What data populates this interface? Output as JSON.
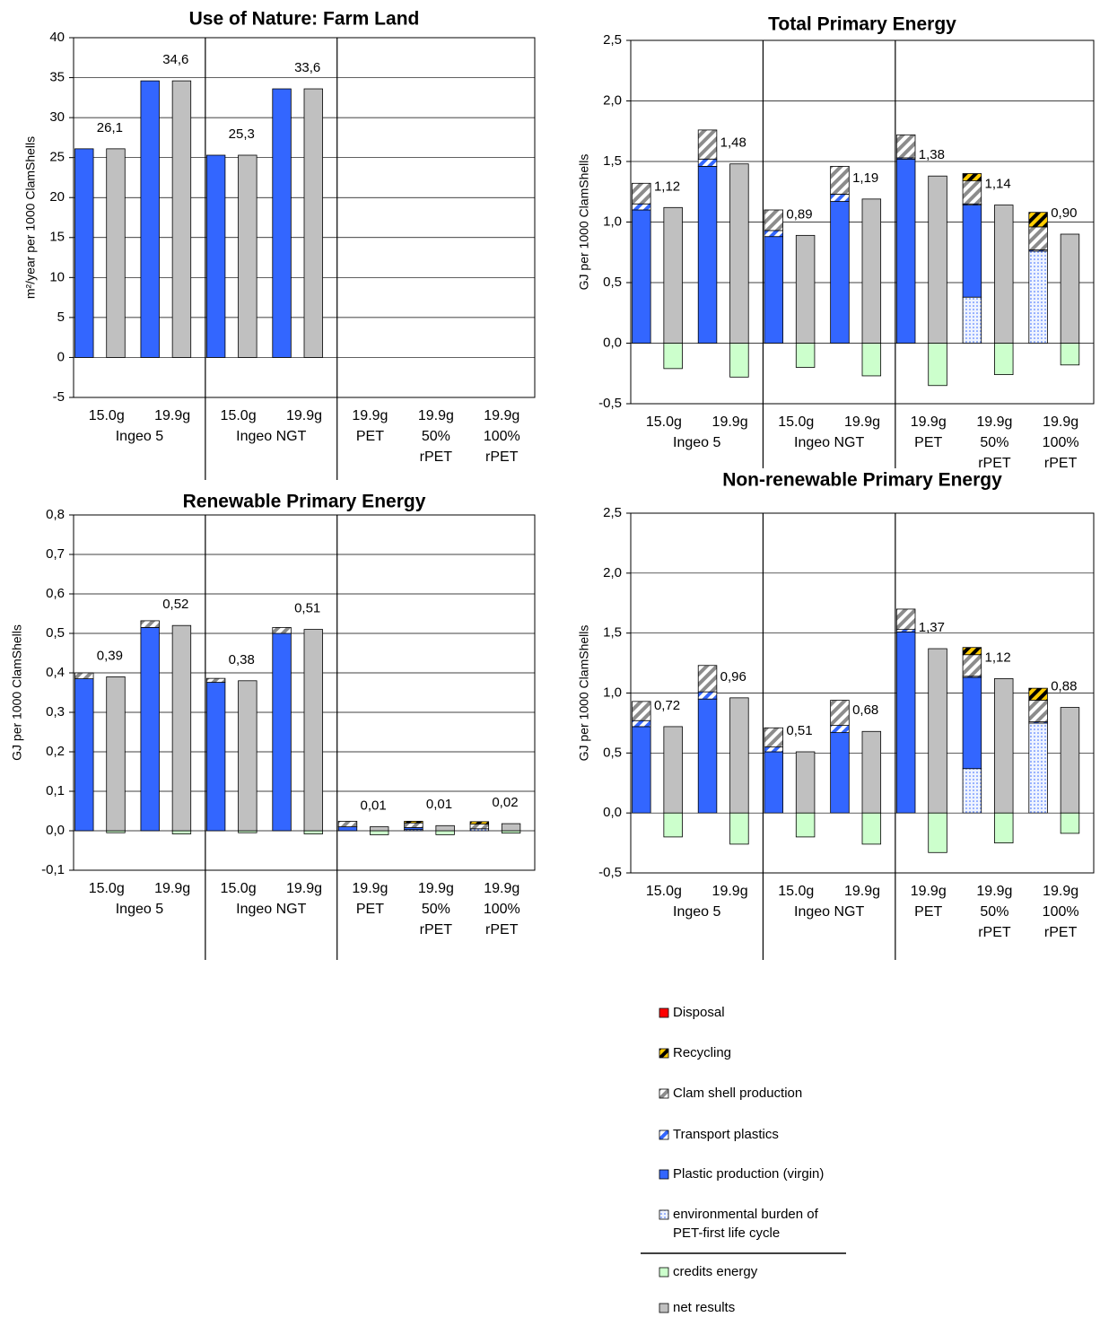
{
  "legend": [
    {
      "name": "Disposal",
      "color": "#ff0000",
      "pattern": "solid"
    },
    {
      "name": "Recycling",
      "color": "#ffcc00",
      "pattern": "stripes-on"
    },
    {
      "name": "Clam shell production",
      "color": "#8c8c8c",
      "pattern": "stripes"
    },
    {
      "name": "Transport plastics",
      "color": "#3366ff",
      "pattern": "stripes"
    },
    {
      "name": "Plastic production (virgin)",
      "color": "#3366ff",
      "pattern": "solid"
    },
    {
      "name": "environmental burden of\nPET-first life cycle",
      "color": "#3366ff",
      "pattern": "dots"
    },
    {
      "name": "credits energy",
      "color": "#ccffcc",
      "pattern": "solid"
    },
    {
      "name": "net results",
      "color": "#c0c0c0",
      "pattern": "solid"
    }
  ],
  "chart_data": [
    {
      "type": "bar",
      "title": "Use of Nature: Farm Land",
      "y_label": "m²/year per 1000 ClamShells",
      "groups": [
        {
          "label": "Ingeo 5",
          "categories": [
            "15.0g",
            "19.9g"
          ]
        },
        {
          "label": "Ingeo NGT",
          "categories": [
            "15.0g",
            "19.9g"
          ]
        },
        {
          "label": null,
          "categories": [
            "19.9g\nPET",
            "19.9g\n50%\nrPET",
            "19.9g\n100%\nrPET"
          ]
        }
      ],
      "ylim": [
        -5,
        40
      ],
      "yticks": [
        -5,
        0,
        5,
        10,
        15,
        20,
        25,
        30,
        35,
        40
      ],
      "grid": true,
      "series": [
        {
          "values": [
            null,
            null,
            null,
            null,
            null,
            null,
            null
          ]
        },
        {
          "values": [
            null,
            null,
            null,
            null,
            null,
            null,
            null
          ]
        },
        {
          "values": [
            null,
            null,
            null,
            null,
            null,
            null,
            null
          ]
        },
        {
          "values": [
            null,
            null,
            null,
            null,
            null,
            null,
            null
          ]
        },
        {
          "values": [
            26.1,
            34.6,
            25.3,
            33.6,
            null,
            null,
            null
          ]
        },
        {
          "values": [
            null,
            null,
            null,
            null,
            null,
            null,
            null
          ]
        },
        {
          "values": [
            null,
            null,
            null,
            null,
            null,
            null,
            null
          ]
        },
        {
          "values": [
            26.1,
            34.6,
            25.3,
            33.6,
            null,
            null,
            null
          ],
          "value_labels": [
            "26,1",
            "34,6",
            "25,3",
            "33,6",
            null,
            null,
            null
          ]
        }
      ]
    },
    {
      "type": "bar",
      "title": "Total Primary Energy",
      "y_label": "GJ per 1000 ClamShells",
      "groups": [
        {
          "label": "Ingeo 5",
          "categories": [
            "15.0g",
            "19.9g"
          ]
        },
        {
          "label": "Ingeo NGT",
          "categories": [
            "15.0g",
            "19.9g"
          ]
        },
        {
          "label": null,
          "categories": [
            "19.9g\nPET",
            "19.9g\n50%\nrPET",
            "19.9g\n100%\nrPET"
          ]
        }
      ],
      "ylim": [
        -0.5,
        2.5
      ],
      "yticks": [
        {
          "value": -0.5,
          "label": "-0,5"
        },
        {
          "value": 0,
          "label": "0,0"
        },
        {
          "value": 0.5,
          "label": "0,5"
        },
        {
          "value": 1,
          "label": "1,0"
        },
        {
          "value": 1.5,
          "label": "1,5"
        },
        {
          "value": 2,
          "label": "2,0"
        },
        {
          "value": 2.5,
          "label": "2,5"
        }
      ],
      "grid": true,
      "series": [
        {
          "values": [
            null,
            null,
            null,
            null,
            null,
            null,
            null
          ]
        },
        {
          "values": [
            null,
            null,
            null,
            null,
            null,
            0.06,
            0.12
          ]
        },
        {
          "values": [
            0.17,
            0.24,
            0.17,
            0.23,
            0.19,
            0.19,
            0.19
          ]
        },
        {
          "values": [
            0.05,
            0.06,
            0.05,
            0.06,
            0.01,
            0.01,
            0.01
          ]
        },
        {
          "values": [
            1.1,
            1.46,
            0.88,
            1.17,
            1.52,
            0.76,
            null
          ]
        },
        {
          "values": [
            null,
            null,
            null,
            null,
            null,
            0.38,
            0.76
          ]
        },
        {
          "values": [
            -0.21,
            -0.28,
            -0.2,
            -0.27,
            -0.35,
            -0.26,
            -0.18
          ]
        },
        {
          "values": [
            1.12,
            1.48,
            0.89,
            1.19,
            1.38,
            1.14,
            0.9
          ],
          "value_labels": [
            "1,12",
            "1,48",
            "0,89",
            "1,19",
            "1,38",
            "1,14",
            "0,90"
          ]
        }
      ]
    },
    {
      "type": "bar",
      "title": "Renewable Primary Energy",
      "y_label": "GJ per 1000 ClamShells",
      "groups": [
        {
          "label": "Ingeo 5",
          "categories": [
            "15.0g",
            "19.9g"
          ]
        },
        {
          "label": "Ingeo NGT",
          "categories": [
            "15.0g",
            "19.9g"
          ]
        },
        {
          "label": null,
          "categories": [
            "19.9g\nPET",
            "19.9g\n50%\nrPET",
            "19.9g\n100%\nrPET"
          ]
        }
      ],
      "ylim": [
        -0.1,
        0.8
      ],
      "yticks": [
        {
          "value": -0.1,
          "label": "-0,1"
        },
        {
          "value": 0,
          "label": "0,0"
        },
        {
          "value": 0.1,
          "label": "0,1"
        },
        {
          "value": 0.2,
          "label": "0,2"
        },
        {
          "value": 0.3,
          "label": "0,3"
        },
        {
          "value": 0.4,
          "label": "0,4"
        },
        {
          "value": 0.5,
          "label": "0,5"
        },
        {
          "value": 0.6,
          "label": "0,6"
        },
        {
          "value": 0.7,
          "label": "0,7"
        },
        {
          "value": 0.8,
          "label": "0,8"
        }
      ],
      "grid": true,
      "series": [
        {
          "values": [
            null,
            null,
            null,
            null,
            null,
            null,
            null
          ]
        },
        {
          "values": [
            null,
            null,
            null,
            null,
            null,
            0.004,
            0.006
          ]
        },
        {
          "values": [
            0.015,
            0.017,
            0.01,
            0.015,
            0.014,
            0.012,
            0.012
          ]
        },
        {
          "values": [
            null,
            null,
            null,
            null,
            null,
            null,
            null
          ]
        },
        {
          "values": [
            0.385,
            0.515,
            0.376,
            0.5,
            0.01,
            0.005,
            null
          ]
        },
        {
          "values": [
            null,
            null,
            null,
            null,
            null,
            0.003,
            0.005
          ]
        },
        {
          "values": [
            -0.005,
            -0.008,
            -0.005,
            -0.008,
            -0.01,
            -0.01,
            -0.006
          ]
        },
        {
          "values": [
            0.39,
            0.52,
            0.38,
            0.51,
            0.01,
            0.013,
            0.018
          ],
          "value_labels": [
            "0,39",
            "0,52",
            "0,38",
            "0,51",
            "0,01",
            "0,01",
            "0,02"
          ]
        }
      ]
    },
    {
      "type": "bar",
      "title": "Non-renewable Primary Energy",
      "y_label": "GJ per 1000 ClamShells",
      "groups": [
        {
          "label": "Ingeo 5",
          "categories": [
            "15.0g",
            "19.9g"
          ]
        },
        {
          "label": "Ingeo NGT",
          "categories": [
            "15.0g",
            "19.9g"
          ]
        },
        {
          "label": null,
          "categories": [
            "19.9g\nPET",
            "19.9g\n50%\nrPET",
            "19.9g\n100%\nrPET"
          ]
        }
      ],
      "ylim": [
        -0.5,
        2.5
      ],
      "yticks": [
        {
          "value": -0.5,
          "label": "-0,5"
        },
        {
          "value": 0,
          "label": "0,0"
        },
        {
          "value": 0.5,
          "label": "0,5"
        },
        {
          "value": 1,
          "label": "1,0"
        },
        {
          "value": 1.5,
          "label": "1,5"
        },
        {
          "value": 2,
          "label": "2,0"
        },
        {
          "value": 2.5,
          "label": "2,5"
        }
      ],
      "grid": true,
      "series": [
        {
          "values": [
            null,
            null,
            null,
            null,
            null,
            null,
            null
          ]
        },
        {
          "values": [
            null,
            null,
            null,
            null,
            null,
            0.06,
            0.1
          ]
        },
        {
          "values": [
            0.16,
            0.22,
            0.16,
            0.21,
            0.17,
            0.18,
            0.18
          ]
        },
        {
          "values": [
            0.05,
            0.06,
            0.04,
            0.06,
            0.02,
            0.01,
            0.01
          ]
        },
        {
          "values": [
            0.72,
            0.95,
            0.51,
            0.67,
            1.51,
            0.76,
            null
          ]
        },
        {
          "values": [
            null,
            null,
            null,
            null,
            null,
            0.37,
            0.75
          ]
        },
        {
          "values": [
            -0.2,
            -0.26,
            -0.2,
            -0.26,
            -0.33,
            -0.25,
            -0.17
          ]
        },
        {
          "values": [
            0.72,
            0.96,
            0.51,
            0.68,
            1.37,
            1.12,
            0.88
          ],
          "value_labels": [
            "0,72",
            "0,96",
            "0,51",
            "0,68",
            "1,37",
            "1,12",
            "0,88"
          ]
        }
      ]
    }
  ]
}
